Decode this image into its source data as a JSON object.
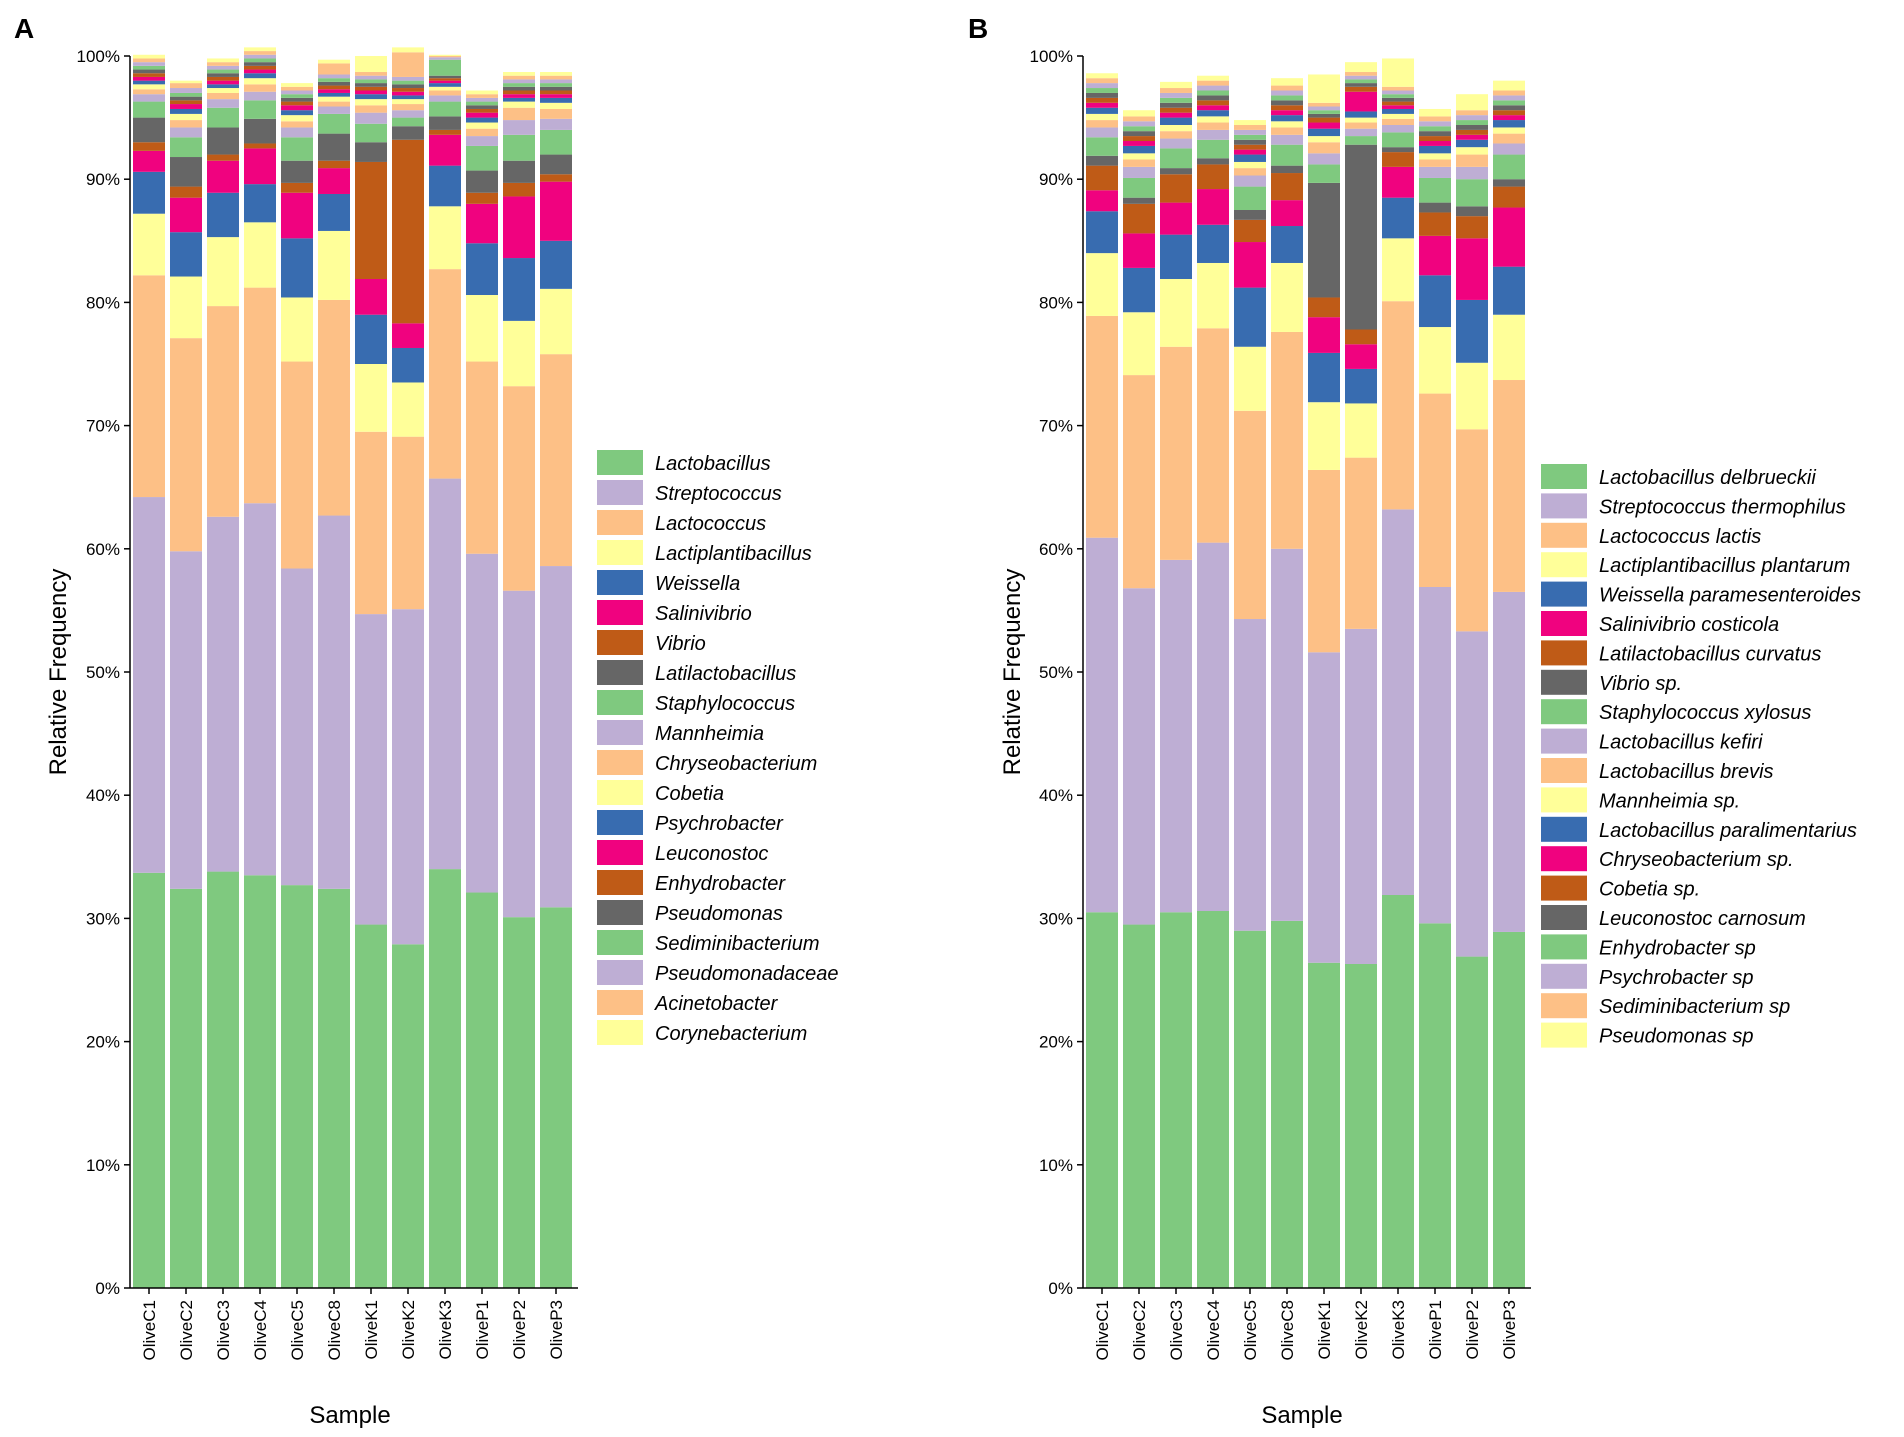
{
  "chart_data": [
    {
      "panel": "A",
      "type": "bar",
      "stacked": true,
      "xlabel": "Sample",
      "ylabel": "Relative Frequency",
      "ylim": [
        0,
        100
      ],
      "yticks": [
        "0%",
        "10%",
        "20%",
        "30%",
        "40%",
        "50%",
        "60%",
        "70%",
        "80%",
        "90%",
        "100%"
      ],
      "categories": [
        "OliveC1",
        "OliveC2",
        "OliveC3",
        "OliveC4",
        "OliveC5",
        "OliveC8",
        "OliveK1",
        "OliveK2",
        "OliveK3",
        "OliveP1",
        "OliveP2",
        "OliveP3"
      ],
      "series": [
        {
          "name": "Lactobacillus",
          "color": "#7fc97f",
          "values": [
            33.7,
            32.4,
            33.8,
            33.5,
            32.7,
            32.4,
            29.5,
            27.9,
            34.0,
            32.1,
            30.1,
            30.9
          ]
        },
        {
          "name": "Streptococcus",
          "color": "#beaed4",
          "values": [
            30.5,
            27.4,
            28.8,
            30.2,
            25.7,
            30.3,
            25.2,
            27.2,
            31.7,
            27.5,
            26.5,
            27.7
          ]
        },
        {
          "name": "Lactococcus",
          "color": "#fdc086",
          "values": [
            18.0,
            17.3,
            17.1,
            17.5,
            16.8,
            17.5,
            14.8,
            14.0,
            17.0,
            15.6,
            16.6,
            17.2
          ]
        },
        {
          "name": "Lactiplantibacillus",
          "color": "#ffff99",
          "values": [
            5.0,
            5.0,
            5.6,
            5.3,
            5.2,
            5.6,
            5.5,
            4.4,
            5.1,
            5.4,
            5.3,
            5.3
          ]
        },
        {
          "name": "Weissella",
          "color": "#386cb0",
          "values": [
            3.4,
            3.6,
            3.6,
            3.1,
            4.8,
            3.0,
            4.0,
            2.8,
            3.3,
            4.2,
            5.1,
            3.9
          ]
        },
        {
          "name": "Salinivibrio",
          "color": "#f0027f",
          "values": [
            1.7,
            2.8,
            2.6,
            2.9,
            3.7,
            2.1,
            2.9,
            2.0,
            2.5,
            3.2,
            5.0,
            4.8
          ]
        },
        {
          "name": "Vibrio",
          "color": "#bf5b17",
          "values": [
            0.7,
            0.9,
            0.5,
            0.4,
            0.8,
            0.6,
            9.5,
            14.9,
            0.4,
            0.9,
            1.1,
            0.6
          ]
        },
        {
          "name": "Latilactobacillus",
          "color": "#666666",
          "values": [
            2.0,
            2.4,
            2.2,
            2.0,
            1.8,
            2.2,
            1.6,
            1.1,
            1.1,
            1.8,
            1.8,
            1.6
          ]
        },
        {
          "name": "Staphylococcus",
          "color": "#7fc97f",
          "values": [
            1.3,
            1.6,
            1.6,
            1.5,
            1.9,
            1.6,
            1.5,
            0.7,
            1.2,
            2.0,
            2.1,
            2.0
          ]
        },
        {
          "name": "Mannheimia",
          "color": "#beaed4",
          "values": [
            0.6,
            0.8,
            0.7,
            0.7,
            0.8,
            0.6,
            0.9,
            0.6,
            0.5,
            0.8,
            1.2,
            0.9
          ]
        },
        {
          "name": "Chryseobacterium",
          "color": "#fdc086",
          "values": [
            0.4,
            0.6,
            0.5,
            0.6,
            0.5,
            0.4,
            0.6,
            0.5,
            0.4,
            0.6,
            1.0,
            0.8
          ]
        },
        {
          "name": "Cobetia",
          "color": "#ffff99",
          "values": [
            0.4,
            0.5,
            0.4,
            0.5,
            0.5,
            0.4,
            0.5,
            0.4,
            0.3,
            0.5,
            0.5,
            0.5
          ]
        },
        {
          "name": "Psychrobacter",
          "color": "#386cb0",
          "values": [
            0.3,
            0.4,
            0.3,
            0.4,
            0.4,
            0.3,
            0.4,
            0.3,
            0.3,
            0.4,
            0.3,
            0.4
          ]
        },
        {
          "name": "Leuconostoc",
          "color": "#f0027f",
          "values": [
            0.3,
            0.4,
            0.3,
            0.3,
            0.4,
            0.3,
            0.3,
            0.3,
            0.2,
            0.4,
            0.3,
            0.3
          ]
        },
        {
          "name": "Enhydrobacter",
          "color": "#bf5b17",
          "values": [
            0.3,
            0.3,
            0.3,
            0.3,
            0.3,
            0.3,
            0.3,
            0.3,
            0.2,
            0.3,
            0.3,
            0.3
          ]
        },
        {
          "name": "Pseudomonas",
          "color": "#666666",
          "values": [
            0.3,
            0.3,
            0.3,
            0.3,
            0.3,
            0.3,
            0.3,
            0.3,
            0.2,
            0.3,
            0.3,
            0.3
          ]
        },
        {
          "name": "Sediminibacterium",
          "color": "#7fc97f",
          "values": [
            0.3,
            0.3,
            0.3,
            0.3,
            0.3,
            0.3,
            0.3,
            0.3,
            1.3,
            0.3,
            0.3,
            0.3
          ]
        },
        {
          "name": "Pseudomonadaceae",
          "color": "#beaed4",
          "values": [
            0.3,
            0.4,
            0.3,
            0.3,
            0.3,
            0.3,
            0.3,
            0.3,
            0.2,
            0.3,
            0.3,
            0.3
          ]
        },
        {
          "name": "Acinetobacter",
          "color": "#fdc086",
          "values": [
            0.3,
            0.4,
            0.3,
            0.3,
            0.3,
            0.9,
            0.3,
            2.0,
            0.1,
            0.3,
            0.3,
            0.3
          ]
        },
        {
          "name": "Corynebacterium",
          "color": "#ffff99",
          "values": [
            0.3,
            0.2,
            0.3,
            0.3,
            0.3,
            0.3,
            1.3,
            0.4,
            0.1,
            0.3,
            0.3,
            0.3
          ]
        }
      ]
    },
    {
      "panel": "B",
      "type": "bar",
      "stacked": true,
      "xlabel": "Sample",
      "ylabel": "Relative Frequency",
      "ylim": [
        0,
        100
      ],
      "yticks": [
        "0%",
        "10%",
        "20%",
        "30%",
        "40%",
        "50%",
        "60%",
        "70%",
        "80%",
        "90%",
        "100%"
      ],
      "categories": [
        "OliveC1",
        "OliveC2",
        "OliveC3",
        "OliveC4",
        "OliveC5",
        "OliveC8",
        "OliveK1",
        "OliveK2",
        "OliveK3",
        "OliveP1",
        "OliveP2",
        "OliveP3"
      ],
      "series": [
        {
          "name": "Lactobacillus delbrueckii",
          "color": "#7fc97f",
          "values": [
            30.5,
            29.5,
            30.5,
            30.6,
            29.0,
            29.8,
            26.4,
            26.3,
            31.9,
            29.6,
            26.9,
            28.9
          ]
        },
        {
          "name": "Streptococcus thermophilus",
          "color": "#beaed4",
          "values": [
            30.4,
            27.3,
            28.6,
            29.9,
            25.3,
            30.2,
            25.2,
            27.2,
            31.3,
            27.3,
            26.4,
            27.6
          ]
        },
        {
          "name": "Lactococcus lactis",
          "color": "#fdc086",
          "values": [
            18.0,
            17.3,
            17.3,
            17.4,
            16.9,
            17.6,
            14.8,
            13.9,
            16.9,
            15.7,
            16.4,
            17.2
          ]
        },
        {
          "name": "Lactiplantibacillus plantarum",
          "color": "#ffff99",
          "values": [
            5.1,
            5.1,
            5.5,
            5.3,
            5.2,
            5.6,
            5.5,
            4.4,
            5.1,
            5.4,
            5.4,
            5.3
          ]
        },
        {
          "name": "Weissella paramesenteroides",
          "color": "#386cb0",
          "values": [
            3.4,
            3.6,
            3.6,
            3.1,
            4.8,
            3.0,
            4.0,
            2.8,
            3.3,
            4.2,
            5.1,
            3.9
          ]
        },
        {
          "name": "Salinivibrio costicola",
          "color": "#f0027f",
          "values": [
            1.7,
            2.8,
            2.6,
            2.9,
            3.7,
            2.1,
            2.9,
            2.0,
            2.5,
            3.2,
            5.0,
            4.8
          ]
        },
        {
          "name": "Latilactobacillus curvatus",
          "color": "#bf5b17",
          "values": [
            2.0,
            2.4,
            2.3,
            2.0,
            1.8,
            2.2,
            1.6,
            1.2,
            1.2,
            1.9,
            1.8,
            1.7
          ]
        },
        {
          "name": "Vibrio sp.",
          "color": "#666666",
          "values": [
            0.8,
            0.5,
            0.5,
            0.5,
            0.8,
            0.6,
            9.3,
            15.0,
            0.4,
            0.8,
            0.8,
            0.6
          ]
        },
        {
          "name": "Staphylococcus xylosus",
          "color": "#7fc97f",
          "values": [
            1.5,
            1.6,
            1.6,
            1.5,
            1.9,
            1.7,
            1.5,
            0.7,
            1.2,
            2.0,
            2.2,
            2.0
          ]
        },
        {
          "name": "Lactobacillus kefiri",
          "color": "#beaed4",
          "values": [
            0.8,
            0.9,
            0.8,
            0.8,
            0.9,
            0.8,
            0.9,
            0.6,
            0.6,
            0.9,
            1.0,
            0.9
          ]
        },
        {
          "name": "Lactobacillus brevis",
          "color": "#fdc086",
          "values": [
            0.6,
            0.6,
            0.6,
            0.6,
            0.6,
            0.6,
            0.9,
            0.5,
            0.5,
            0.6,
            1.0,
            0.8
          ]
        },
        {
          "name": "Mannheimia sp.",
          "color": "#ffff99",
          "values": [
            0.5,
            0.5,
            0.5,
            0.5,
            0.5,
            0.5,
            0.5,
            0.4,
            0.4,
            0.5,
            0.6,
            0.5
          ]
        },
        {
          "name": "Lactobacillus paralimentarius",
          "color": "#386cb0",
          "values": [
            0.5,
            0.6,
            0.6,
            0.5,
            0.6,
            0.5,
            0.6,
            0.5,
            0.4,
            0.6,
            0.6,
            0.6
          ]
        },
        {
          "name": "Chryseobacterium sp.",
          "color": "#f0027f",
          "values": [
            0.4,
            0.4,
            0.4,
            0.4,
            0.4,
            0.4,
            0.5,
            1.6,
            0.3,
            0.4,
            0.4,
            0.4
          ]
        },
        {
          "name": "Cobetia sp.",
          "color": "#bf5b17",
          "values": [
            0.4,
            0.4,
            0.4,
            0.4,
            0.4,
            0.4,
            0.4,
            0.4,
            0.3,
            0.4,
            0.4,
            0.4
          ]
        },
        {
          "name": "Leuconostoc carnosum",
          "color": "#666666",
          "values": [
            0.4,
            0.4,
            0.4,
            0.4,
            0.4,
            0.4,
            0.3,
            0.3,
            0.3,
            0.4,
            0.4,
            0.4
          ]
        },
        {
          "name": "Enhydrobacter sp",
          "color": "#7fc97f",
          "values": [
            0.4,
            0.4,
            0.4,
            0.4,
            0.4,
            0.4,
            0.3,
            0.3,
            0.3,
            0.4,
            0.4,
            0.4
          ]
        },
        {
          "name": "Psychrobacter sp",
          "color": "#beaed4",
          "values": [
            0.4,
            0.4,
            0.4,
            0.4,
            0.4,
            0.4,
            0.3,
            0.3,
            0.3,
            0.4,
            0.4,
            0.4
          ]
        },
        {
          "name": "Sediminibacterium sp",
          "color": "#fdc086",
          "values": [
            0.4,
            0.4,
            0.4,
            0.4,
            0.4,
            0.4,
            0.3,
            0.3,
            0.3,
            0.4,
            0.4,
            0.4
          ]
        },
        {
          "name": "Pseudomonas sp",
          "color": "#ffff99",
          "values": [
            0.4,
            0.5,
            0.5,
            0.4,
            0.4,
            0.6,
            2.3,
            0.8,
            2.3,
            0.6,
            1.3,
            0.8
          ]
        }
      ]
    }
  ]
}
